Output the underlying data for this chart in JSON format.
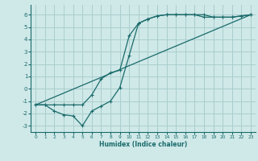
{
  "xlabel": "Humidex (Indice chaleur)",
  "xlim": [
    -0.5,
    23.5
  ],
  "ylim": [
    -3.5,
    6.8
  ],
  "xticks": [
    0,
    1,
    2,
    3,
    4,
    5,
    6,
    7,
    8,
    9,
    10,
    11,
    12,
    13,
    14,
    15,
    16,
    17,
    18,
    19,
    20,
    21,
    22,
    23
  ],
  "yticks": [
    -3,
    -2,
    -1,
    0,
    1,
    2,
    3,
    4,
    5,
    6
  ],
  "bg_color": "#cfe8e8",
  "line_color": "#1a6b6b",
  "grid_color": "#aacece",
  "line1_x": [
    0,
    23
  ],
  "line1_y": [
    -1.3,
    6.0
  ],
  "line2_x": [
    0,
    1,
    2,
    3,
    4,
    5,
    6,
    7,
    8,
    9,
    10,
    11,
    12,
    13,
    14,
    15,
    16,
    17,
    18,
    19,
    20,
    21,
    22,
    23
  ],
  "line2_y": [
    -1.3,
    -1.3,
    -1.8,
    -2.1,
    -2.2,
    -3.0,
    -1.8,
    -1.4,
    -1.0,
    0.1,
    2.7,
    5.3,
    5.65,
    5.9,
    6.0,
    6.0,
    6.0,
    6.0,
    5.8,
    5.8,
    5.8,
    5.8,
    5.9,
    6.0
  ],
  "line3_x": [
    0,
    1,
    2,
    3,
    4,
    5,
    6,
    7,
    8,
    9,
    10,
    11,
    12,
    13,
    14,
    15,
    16,
    17,
    18,
    19,
    20,
    21,
    22,
    23
  ],
  "line3_y": [
    -1.3,
    -1.3,
    -1.3,
    -1.3,
    -1.3,
    -1.3,
    -0.5,
    0.8,
    1.3,
    1.5,
    4.3,
    5.3,
    5.65,
    5.9,
    6.0,
    6.0,
    6.0,
    6.0,
    6.0,
    5.8,
    5.8,
    5.8,
    5.9,
    6.0
  ]
}
